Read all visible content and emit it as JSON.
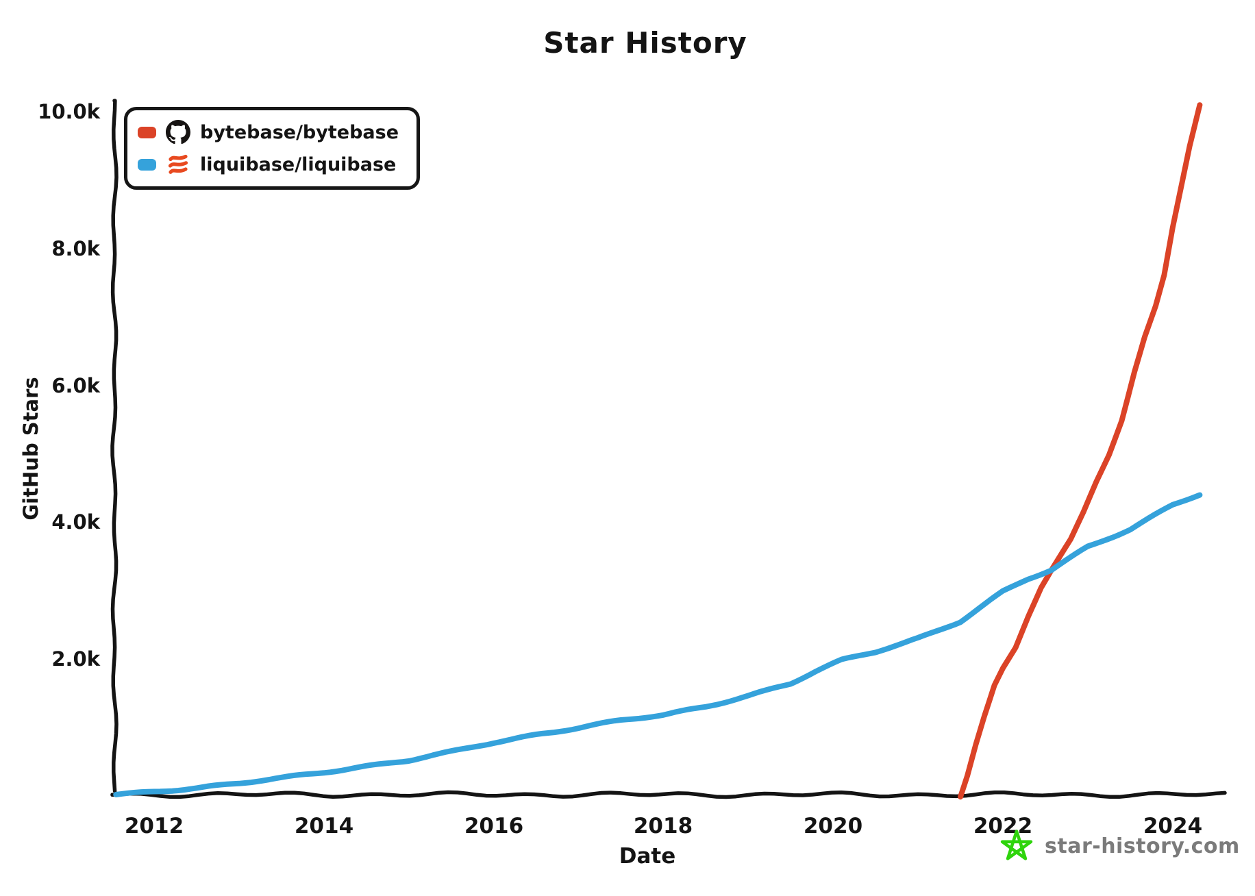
{
  "legend": {
    "items": [
      {
        "label": "bytebase/bytebase",
        "color": "#DB4327",
        "icon": "github-icon"
      },
      {
        "label": "liquibase/liquibase",
        "color": "#35A2DB",
        "icon": "liquibase-icon"
      }
    ]
  },
  "watermark": {
    "text": "star-history.com",
    "text_color": "#7b7b7b",
    "star_color": "#2ED40C"
  },
  "colors": {
    "axis": "#141414",
    "liquibase_logo_orange": "#E8491F",
    "github_logo_black": "#171413"
  },
  "chart_data": {
    "type": "line",
    "title": "Star History",
    "xlabel": "Date",
    "ylabel": "GitHub Stars",
    "xlim": [
      2011.5,
      2024.65
    ],
    "ylim": [
      0,
      10150
    ],
    "grid": false,
    "legend_position": "top-left",
    "x_ticks": [
      {
        "value": 2012,
        "label": "2012"
      },
      {
        "value": 2014,
        "label": "2014"
      },
      {
        "value": 2016,
        "label": "2016"
      },
      {
        "value": 2018,
        "label": "2018"
      },
      {
        "value": 2020,
        "label": "2020"
      },
      {
        "value": 2022,
        "label": "2022"
      },
      {
        "value": 2024,
        "label": "2024"
      }
    ],
    "y_ticks": [
      {
        "value": 2000,
        "label": "2.0k"
      },
      {
        "value": 4000,
        "label": "4.0k"
      },
      {
        "value": 6000,
        "label": "6.0k"
      },
      {
        "value": 8000,
        "label": "8.0k"
      },
      {
        "value": 10000,
        "label": "10.0k"
      }
    ],
    "series": [
      {
        "name": "bytebase/bytebase",
        "color": "#DB4327",
        "points": [
          [
            2021.5,
            0
          ],
          [
            2021.58,
            300
          ],
          [
            2021.68,
            750
          ],
          [
            2021.78,
            1150
          ],
          [
            2021.9,
            1600
          ],
          [
            2022.0,
            1850
          ],
          [
            2022.15,
            2160
          ],
          [
            2022.3,
            2630
          ],
          [
            2022.45,
            3050
          ],
          [
            2022.57,
            3300
          ],
          [
            2022.8,
            3750
          ],
          [
            2022.95,
            4150
          ],
          [
            2023.1,
            4600
          ],
          [
            2023.25,
            5000
          ],
          [
            2023.4,
            5500
          ],
          [
            2023.55,
            6200
          ],
          [
            2023.67,
            6700
          ],
          [
            2023.8,
            7150
          ],
          [
            2023.9,
            7600
          ],
          [
            2024.0,
            8300
          ],
          [
            2024.1,
            8900
          ],
          [
            2024.2,
            9500
          ],
          [
            2024.32,
            10100
          ]
        ]
      },
      {
        "name": "liquibase/liquibase",
        "color": "#35A2DB",
        "points": [
          [
            2011.55,
            20
          ],
          [
            2012.0,
            70
          ],
          [
            2012.5,
            120
          ],
          [
            2013.0,
            180
          ],
          [
            2013.5,
            260
          ],
          [
            2014.0,
            350
          ],
          [
            2014.5,
            440
          ],
          [
            2015.0,
            520
          ],
          [
            2015.5,
            640
          ],
          [
            2016.0,
            780
          ],
          [
            2016.5,
            900
          ],
          [
            2017.0,
            1000
          ],
          [
            2017.5,
            1100
          ],
          [
            2018.0,
            1180
          ],
          [
            2018.5,
            1310
          ],
          [
            2019.0,
            1470
          ],
          [
            2019.5,
            1640
          ],
          [
            2019.8,
            1820
          ],
          [
            2020.1,
            1980
          ],
          [
            2020.5,
            2110
          ],
          [
            2021.0,
            2310
          ],
          [
            2021.5,
            2550
          ],
          [
            2022.0,
            2980
          ],
          [
            2022.3,
            3170
          ],
          [
            2022.57,
            3300
          ],
          [
            2023.0,
            3650
          ],
          [
            2023.5,
            3900
          ],
          [
            2024.0,
            4250
          ],
          [
            2024.32,
            4400
          ]
        ]
      }
    ]
  }
}
